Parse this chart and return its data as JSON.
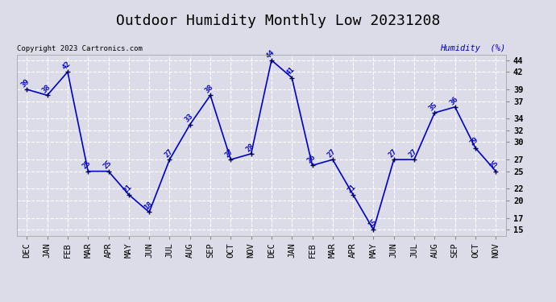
{
  "title": "Outdoor Humidity Monthly Low 20231208",
  "copyright": "Copyright 2023 Cartronics.com",
  "ylabel": "Humidity  (%)",
  "categories": [
    "DEC",
    "JAN",
    "FEB",
    "MAR",
    "APR",
    "MAY",
    "JUN",
    "JUL",
    "AUG",
    "SEP",
    "OCT",
    "NOV",
    "DEC",
    "JAN",
    "FEB",
    "MAR",
    "APR",
    "MAY",
    "JUN",
    "JUL",
    "AUG",
    "SEP",
    "OCT",
    "NOV"
  ],
  "values": [
    39,
    38,
    42,
    25,
    25,
    21,
    18,
    27,
    33,
    38,
    27,
    28,
    44,
    41,
    26,
    27,
    21,
    15,
    27,
    27,
    35,
    36,
    29,
    25
  ],
  "ylim": [
    14,
    45
  ],
  "yticks": [
    15,
    17,
    20,
    22,
    25,
    27,
    30,
    32,
    34,
    37,
    39,
    42,
    44
  ],
  "line_color": "#0000cc",
  "marker_color": "#000055",
  "bg_color": "#dcdce8",
  "grid_color": "#ffffff",
  "title_color": "#000000",
  "label_color": "#0000cc",
  "copyright_color": "#000000",
  "ylabel_color": "#0000cc",
  "title_fontsize": 13,
  "label_fontsize": 6.5,
  "tick_fontsize": 7.5,
  "copyright_fontsize": 6.5
}
